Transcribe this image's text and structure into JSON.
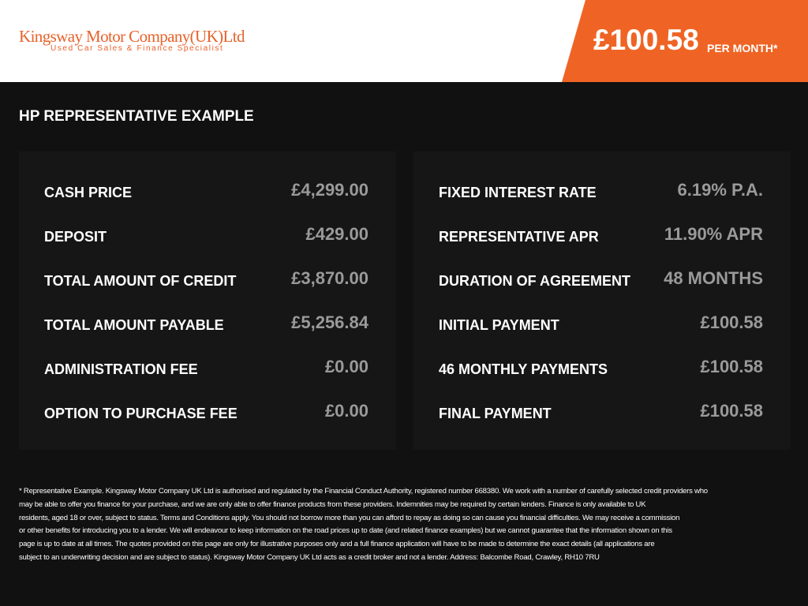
{
  "header": {
    "logo_title": "Kingsway Motor Company(UK)Ltd",
    "logo_subtitle": "Used Car Sales & Finance Specialist",
    "price": "£100.58",
    "price_suffix": "PER MONTH*"
  },
  "section_title": "HP REPRESENTATIVE EXAMPLE",
  "left_rows": [
    {
      "label": "CASH PRICE",
      "value": "£4,299.00"
    },
    {
      "label": "DEPOSIT",
      "value": "£429.00"
    },
    {
      "label": "TOTAL AMOUNT OF CREDIT",
      "value": "£3,870.00"
    },
    {
      "label": "TOTAL AMOUNT PAYABLE",
      "value": "£5,256.84"
    },
    {
      "label": "ADMINISTRATION FEE",
      "value": "£0.00"
    },
    {
      "label": "OPTION TO PURCHASE FEE",
      "value": "£0.00"
    }
  ],
  "right_rows": [
    {
      "label": "FIXED INTEREST RATE",
      "value": "6.19% P.A."
    },
    {
      "label": "REPRESENTATIVE APR",
      "value": "11.90% APR"
    },
    {
      "label": "DURATION OF AGREEMENT",
      "value": "48 MONTHS"
    },
    {
      "label": "INITIAL PAYMENT",
      "value": "£100.58"
    },
    {
      "label": "46 MONTHLY PAYMENTS",
      "value": "£100.58"
    },
    {
      "label": "FINAL PAYMENT",
      "value": "£100.58"
    }
  ],
  "disclaimer": [
    "* Representative Example. Kingsway Motor Company UK Ltd is authorised and regulated by the Financial Conduct Authority, registered number 668380. We work with a number of carefully selected credit providers who",
    "may be able to offer you finance for your purchase, and we are only able to offer finance products from these providers. Indemnities may be required by certain lenders. Finance is only available to UK",
    "residents, aged 18 or over, subject to status. Terms and Conditions apply. You should not borrow more than you can afford to repay as doing so can cause you financial difficulties. We may receive a commission",
    "or other benefits for introducing you to a lender. We will endeavour to keep information on the road prices up to date (and related finance examples) but we cannot guarantee that the information shown on this",
    "page is up to date at all times. The quotes provided on this page are only for illustrative purposes only and a full finance application will have to be made to determine the exact details (all applications are",
    "subject to an underwriting decision and are subject to status). Kingsway Motor Company UK Ltd acts as a credit broker and not a lender. Address: Balcombe Road, Crawley, RH10 7RU"
  ]
}
